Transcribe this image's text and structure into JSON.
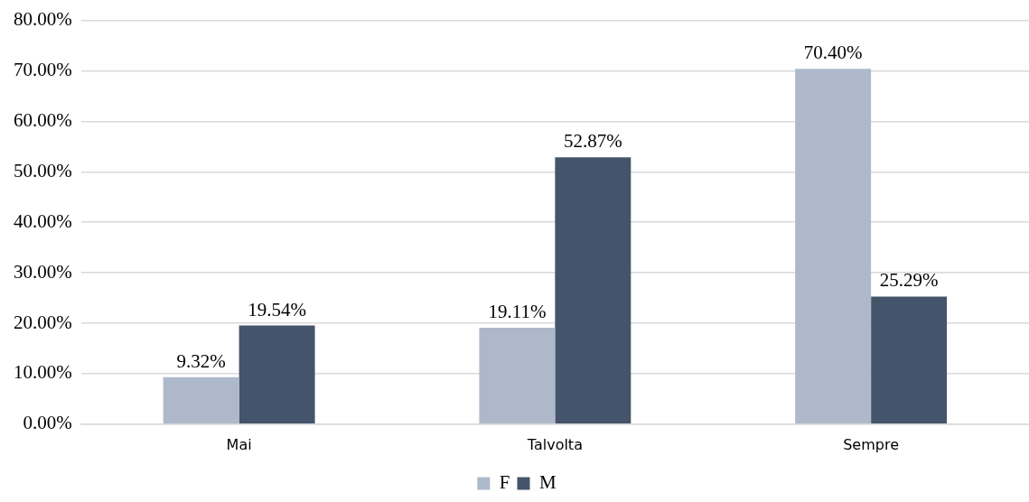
{
  "chart_data": {
    "type": "bar",
    "categories": [
      "Mai",
      "Talvolta",
      "Sempre"
    ],
    "series": [
      {
        "name": "F",
        "color": "#adb9ca",
        "values": [
          9.32,
          19.11,
          70.4
        ],
        "value_labels": [
          "9.32%",
          "19.11%",
          "70.40%"
        ]
      },
      {
        "name": "M",
        "color": "#44546a",
        "values": [
          19.54,
          52.87,
          25.29
        ],
        "value_labels": [
          "19.54%",
          "52.87%",
          "25.29%"
        ]
      }
    ],
    "ylim": [
      0,
      80
    ],
    "yticks": [
      {
        "value": 0,
        "label": "0.00%"
      },
      {
        "value": 10,
        "label": "10.00%"
      },
      {
        "value": 20,
        "label": "20.00%"
      },
      {
        "value": 30,
        "label": "30.00%"
      },
      {
        "value": 40,
        "label": "40.00%"
      },
      {
        "value": 50,
        "label": "50.00%"
      },
      {
        "value": 60,
        "label": "60.00%"
      },
      {
        "value": 70,
        "label": "70.00%"
      },
      {
        "value": 80,
        "label": "80.00%"
      }
    ],
    "grid": "y",
    "legend": "bottom"
  }
}
